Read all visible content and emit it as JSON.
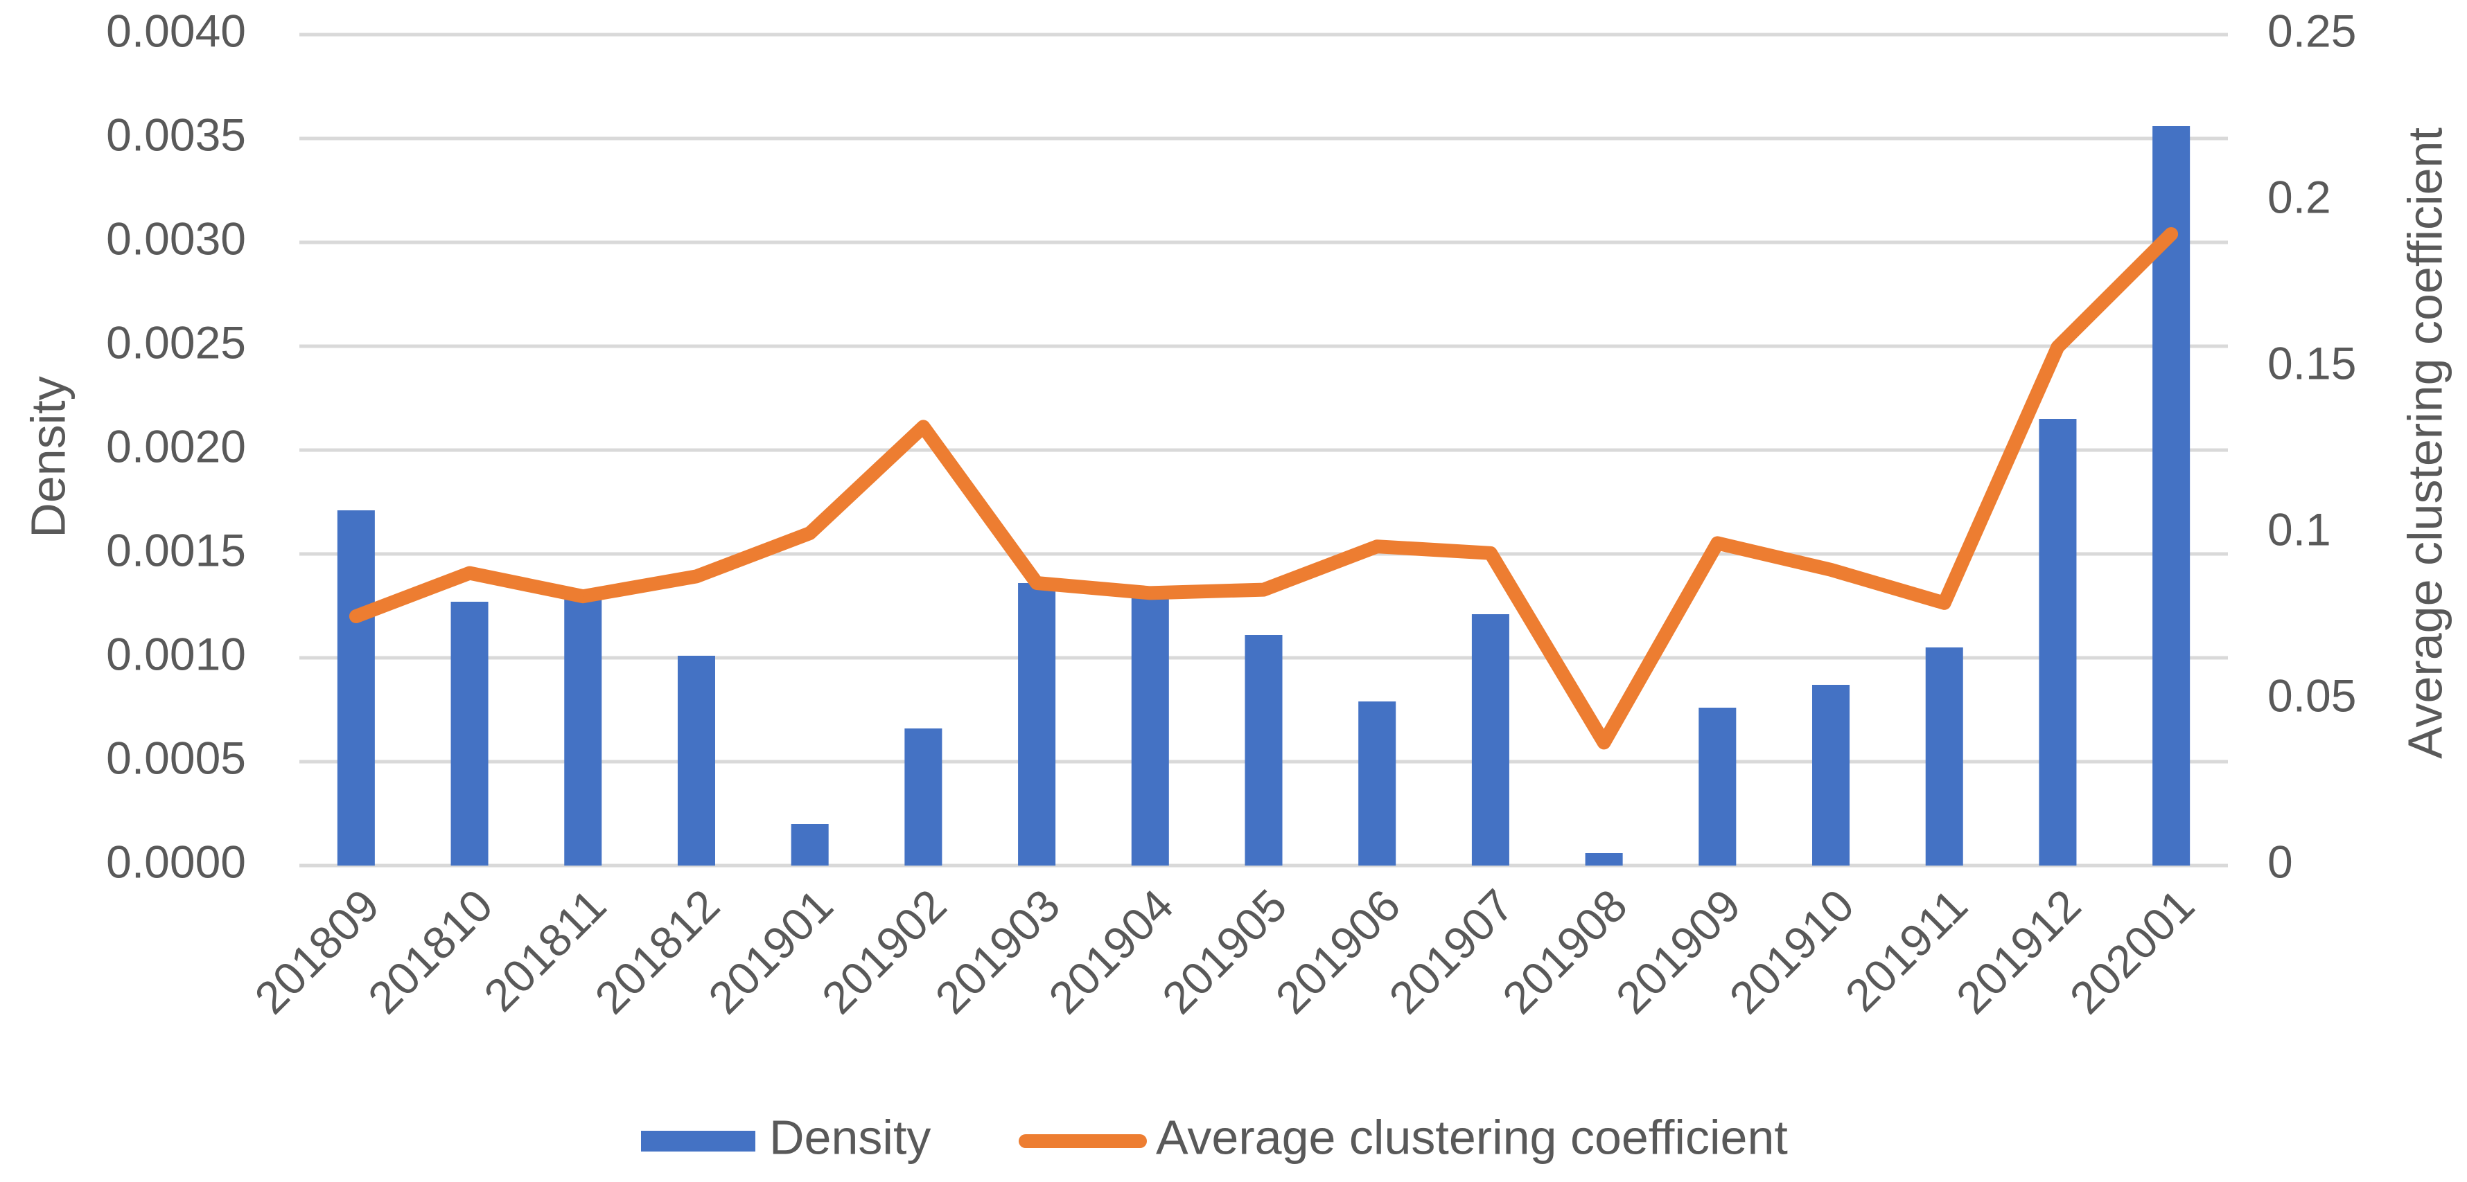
{
  "chart_data": {
    "type": "bar+line",
    "categories": [
      "201809",
      "201810",
      "201811",
      "201812",
      "201901",
      "201902",
      "201903",
      "201904",
      "201905",
      "201906",
      "201907",
      "201908",
      "201909",
      "201910",
      "201911",
      "201912",
      "202001"
    ],
    "series": [
      {
        "name": "Density",
        "type": "bar",
        "axis": "left",
        "color": "#4472C4",
        "values": [
          0.00171,
          0.00127,
          0.00131,
          0.00101,
          0.0002,
          0.00066,
          0.00136,
          0.00131,
          0.00111,
          0.00079,
          0.00121,
          6e-05,
          0.00076,
          0.00087,
          0.00105,
          0.00215,
          0.00356
        ]
      },
      {
        "name": "Average clustering coefficient",
        "type": "line",
        "axis": "right",
        "color": "#ED7D31",
        "values": [
          0.075,
          0.088,
          0.081,
          0.087,
          0.1,
          0.132,
          0.085,
          0.082,
          0.083,
          0.096,
          0.094,
          0.037,
          0.097,
          0.089,
          0.079,
          0.156,
          0.19
        ]
      }
    ],
    "left_axis": {
      "label": "Density",
      "range": [
        0,
        0.004
      ],
      "ticks": [
        "0.0000",
        "0.0005",
        "0.0010",
        "0.0015",
        "0.0020",
        "0.0025",
        "0.0030",
        "0.0035",
        "0.0040"
      ]
    },
    "right_axis": {
      "label": "Average clustering coefficient",
      "range": [
        0,
        0.25
      ],
      "ticks": [
        "0",
        "0.05",
        "0.1",
        "0.15",
        "0.2",
        "0.25"
      ]
    },
    "grid": true,
    "legend": {
      "position": "bottom",
      "entries": [
        "Density",
        "Average clustering coefficient"
      ]
    }
  }
}
